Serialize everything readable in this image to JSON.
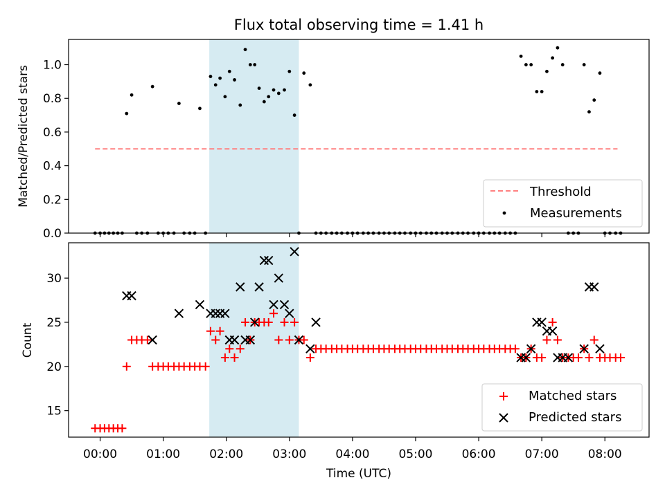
{
  "title": "Flux total observing time = 1.41 h",
  "colors": {
    "threshold": "#ff8080",
    "highlight": "#add8e6",
    "matched": "#ff0000",
    "predicted": "#000000",
    "measurement": "#000000"
  },
  "chart_data": [
    {
      "type": "scatter",
      "panel": "top",
      "ylabel": "Matched/Predicted stars",
      "xlabel": "",
      "xlim": [
        -0.5,
        8.7
      ],
      "ylim": [
        0,
        1.15
      ],
      "yticks": [
        0.0,
        0.2,
        0.4,
        0.6,
        0.8,
        1.0
      ],
      "ytick_labels": [
        "0.0",
        "0.2",
        "0.4",
        "0.6",
        "0.8",
        "1.0"
      ],
      "grid": false,
      "legend": "bottom-right",
      "highlight_span": [
        1.73,
        3.15
      ],
      "threshold": {
        "name": "Threshold",
        "y": 0.5,
        "x_range": [
          -0.08,
          8.2
        ],
        "style": "dashed"
      },
      "series": [
        {
          "name": "Measurements",
          "x": [
            -0.08,
            0.0,
            0.07,
            0.14,
            0.21,
            0.28,
            0.35,
            0.42,
            0.5,
            0.58,
            0.66,
            0.75,
            0.83,
            0.92,
            1.0,
            1.08,
            1.17,
            1.25,
            1.33,
            1.42,
            1.5,
            1.58,
            1.67,
            1.75,
            1.83,
            1.9,
            1.98,
            2.05,
            2.13,
            2.22,
            2.3,
            2.38,
            2.45,
            2.52,
            2.6,
            2.67,
            2.75,
            2.83,
            2.92,
            3.0,
            3.08,
            3.15,
            3.23,
            3.33,
            3.42,
            3.5,
            3.58,
            3.67,
            3.75,
            3.83,
            3.92,
            4.0,
            4.08,
            4.17,
            4.25,
            4.33,
            4.42,
            4.5,
            4.58,
            4.67,
            4.75,
            4.83,
            4.92,
            5.0,
            5.08,
            5.17,
            5.25,
            5.33,
            5.42,
            5.5,
            5.58,
            5.67,
            5.75,
            5.83,
            5.92,
            6.0,
            6.08,
            6.17,
            6.25,
            6.33,
            6.42,
            6.5,
            6.58,
            6.67,
            6.75,
            6.83,
            6.92,
            7.0,
            7.08,
            7.17,
            7.25,
            7.33,
            7.42,
            7.5,
            7.58,
            7.67,
            7.75,
            7.83,
            7.92,
            8.0,
            8.08,
            8.17,
            8.25
          ],
          "y": [
            0,
            0,
            0,
            0,
            0,
            0,
            0,
            0.71,
            0.82,
            0,
            0,
            0,
            0.87,
            0,
            0,
            0,
            0,
            0.77,
            0,
            0,
            0,
            0.74,
            0,
            0.93,
            0.88,
            0.92,
            0.81,
            0.96,
            0.91,
            0.76,
            1.09,
            1.0,
            1.0,
            0.86,
            0.78,
            0.81,
            0.85,
            0.83,
            0.85,
            0.96,
            0.7,
            0,
            0.95,
            0.88,
            0,
            0,
            0,
            0,
            0,
            0,
            0,
            0,
            0,
            0,
            0,
            0,
            0,
            0,
            0,
            0,
            0,
            0,
            0,
            0,
            0,
            0,
            0,
            0,
            0,
            0,
            0,
            0,
            0,
            0,
            0,
            0,
            0,
            0,
            0,
            0,
            0,
            0,
            0,
            1.05,
            1.0,
            1.0,
            0.84,
            0.84,
            0.96,
            1.04,
            1.1,
            1.0,
            0,
            0,
            0,
            1.0,
            0.72,
            0.79,
            0.95,
            0,
            0,
            0,
            0
          ]
        }
      ]
    },
    {
      "type": "scatter",
      "panel": "bottom",
      "ylabel": "Count",
      "xlabel": "Time (UTC)",
      "xlim": [
        -0.5,
        8.7
      ],
      "ylim": [
        12,
        34
      ],
      "yticks": [
        15,
        20,
        25,
        30
      ],
      "ytick_labels": [
        "15",
        "20",
        "25",
        "30"
      ],
      "xticks": [
        0,
        1,
        2,
        3,
        4,
        5,
        6,
        7,
        8
      ],
      "xtick_labels": [
        "00:00",
        "01:00",
        "02:00",
        "03:00",
        "04:00",
        "05:00",
        "06:00",
        "07:00",
        "08:00"
      ],
      "grid": false,
      "legend": "bottom-right",
      "highlight_span": [
        1.73,
        3.15
      ],
      "series": [
        {
          "name": "Matched stars",
          "marker": "plus",
          "x": [
            -0.08,
            0.0,
            0.07,
            0.14,
            0.21,
            0.28,
            0.35,
            0.42,
            0.5,
            0.58,
            0.66,
            0.75,
            0.83,
            0.92,
            1.0,
            1.08,
            1.17,
            1.25,
            1.33,
            1.42,
            1.5,
            1.58,
            1.67,
            1.75,
            1.83,
            1.9,
            1.98,
            2.05,
            2.13,
            2.22,
            2.3,
            2.38,
            2.45,
            2.52,
            2.6,
            2.67,
            2.75,
            2.83,
            2.92,
            3.0,
            3.08,
            3.15,
            3.23,
            3.33,
            3.42,
            3.5,
            3.58,
            3.67,
            3.75,
            3.83,
            3.92,
            4.0,
            4.08,
            4.17,
            4.25,
            4.33,
            4.42,
            4.5,
            4.58,
            4.67,
            4.75,
            4.83,
            4.92,
            5.0,
            5.08,
            5.17,
            5.25,
            5.33,
            5.42,
            5.5,
            5.58,
            5.67,
            5.75,
            5.83,
            5.92,
            6.0,
            6.08,
            6.17,
            6.25,
            6.33,
            6.42,
            6.5,
            6.58,
            6.67,
            6.75,
            6.83,
            6.92,
            7.0,
            7.08,
            7.17,
            7.25,
            7.33,
            7.42,
            7.5,
            7.58,
            7.67,
            7.75,
            7.83,
            7.92,
            8.0,
            8.08,
            8.17,
            8.25
          ],
          "y": [
            13,
            13,
            13,
            13,
            13,
            13,
            13,
            20,
            23,
            23,
            23,
            23,
            20,
            20,
            20,
            20,
            20,
            20,
            20,
            20,
            20,
            20,
            20,
            24,
            23,
            24,
            21,
            22,
            21,
            22,
            25,
            23,
            25,
            25,
            25,
            25,
            26,
            23,
            25,
            23,
            25,
            23,
            23,
            21,
            22,
            22,
            22,
            22,
            22,
            22,
            22,
            22,
            22,
            22,
            22,
            22,
            22,
            22,
            22,
            22,
            22,
            22,
            22,
            22,
            22,
            22,
            22,
            22,
            22,
            22,
            22,
            22,
            22,
            22,
            22,
            22,
            22,
            22,
            22,
            22,
            22,
            22,
            22,
            21,
            21,
            22,
            21,
            21,
            23,
            25,
            23,
            21,
            21,
            21,
            21,
            22,
            21,
            23,
            21,
            21,
            21,
            21,
            21
          ]
        },
        {
          "name": "Predicted stars",
          "marker": "x",
          "x": [
            0.42,
            0.5,
            0.83,
            1.25,
            1.58,
            1.75,
            1.83,
            1.9,
            1.98,
            2.05,
            2.13,
            2.22,
            2.3,
            2.38,
            2.45,
            2.52,
            2.6,
            2.67,
            2.75,
            2.83,
            2.92,
            3.0,
            3.08,
            3.15,
            3.33,
            3.42,
            6.67,
            6.75,
            6.83,
            6.92,
            7.0,
            7.08,
            7.17,
            7.25,
            7.33,
            7.42,
            7.67,
            7.75,
            7.83,
            7.92
          ],
          "y": [
            28,
            28,
            23,
            26,
            27,
            26,
            26,
            26,
            26,
            23,
            23,
            29,
            23,
            23,
            25,
            29,
            32,
            32,
            27,
            30,
            27,
            26,
            33,
            23,
            22,
            25,
            21,
            21,
            22,
            25,
            25,
            24,
            24,
            21,
            21,
            21,
            22,
            29,
            29,
            22
          ]
        }
      ]
    }
  ]
}
